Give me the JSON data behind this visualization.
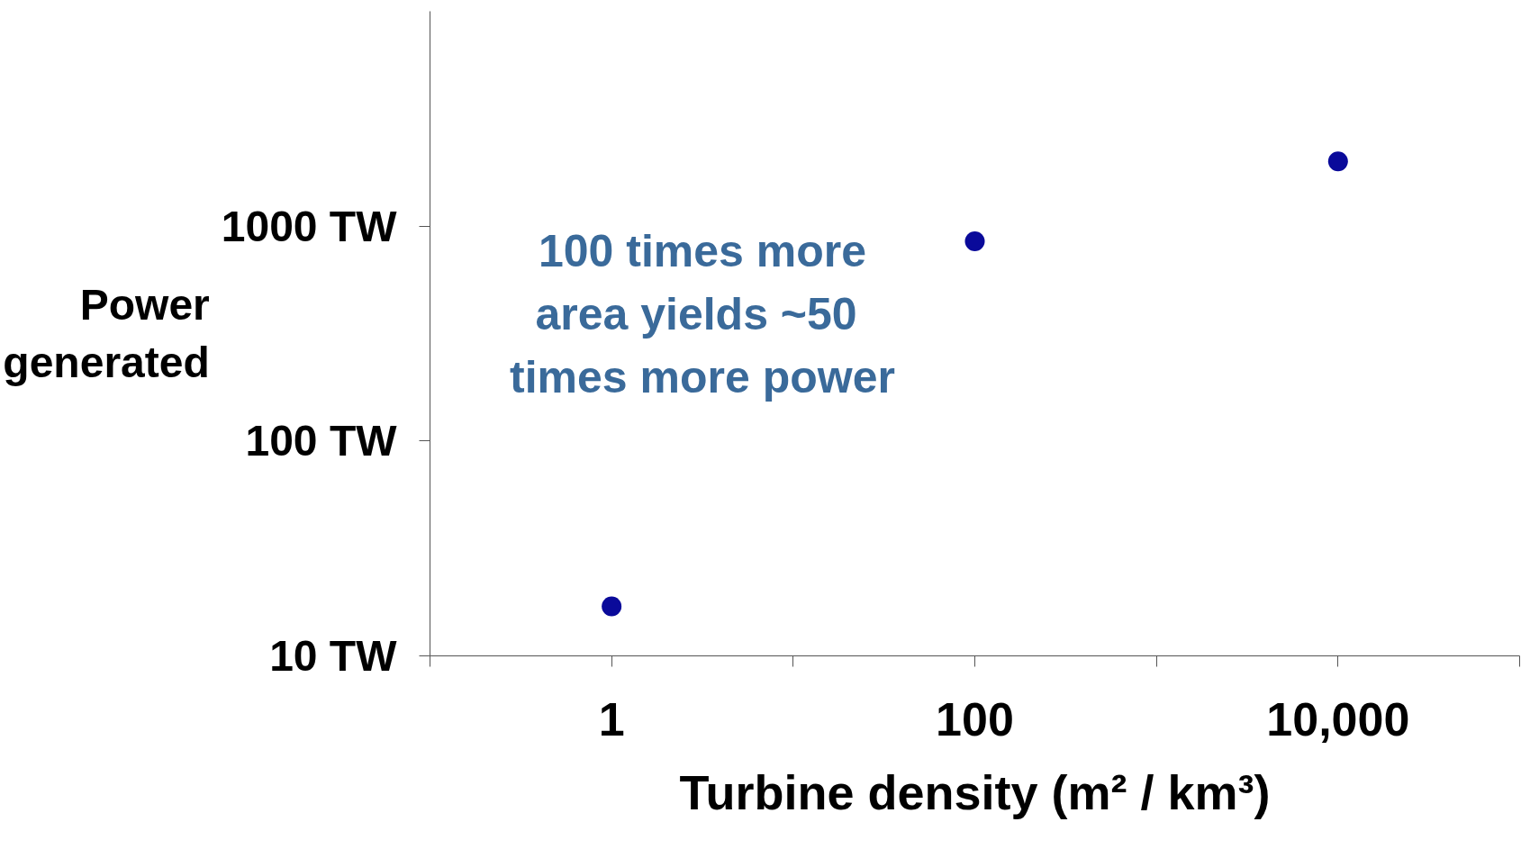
{
  "chart_data": {
    "type": "scatter",
    "xlabel": "Turbine density (m² / km³)",
    "ylabel": "Power generated",
    "x": [
      1,
      100,
      10000
    ],
    "values": [
      17,
      850,
      2000
    ],
    "color": "#0a0a9a",
    "marker": "circle",
    "log": "xy",
    "xlim": [
      0.1,
      100000
    ],
    "ylim": [
      10,
      10000
    ],
    "xticks": [
      {
        "value": 0.1,
        "label": null
      },
      1,
      {
        "value": 10,
        "label": null
      },
      100,
      {
        "value": 1000,
        "label": null
      },
      {
        "value": 10000,
        "label": "10,000"
      },
      {
        "value": 100000,
        "label": null
      }
    ],
    "yticks": [
      {
        "value": 10,
        "label": "10 TW"
      },
      {
        "value": 100,
        "label": "100 TW"
      },
      {
        "value": 1000,
        "label": "1000 TW"
      }
    ],
    "grid": false,
    "annotations": [
      "100 times more area yields  ~50 times more power"
    ]
  }
}
